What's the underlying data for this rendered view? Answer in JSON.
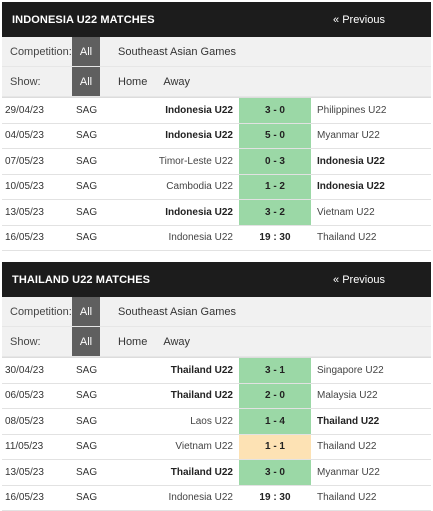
{
  "sections": [
    {
      "title": "INDONESIA U22 MATCHES",
      "prev_label": "« Previous",
      "competition_label": "Competition:",
      "competition_options": [
        "All",
        "Southeast Asian Games"
      ],
      "show_label": "Show:",
      "show_options": [
        "All",
        "Home",
        "Away"
      ],
      "matches": [
        {
          "date": "29/04/23",
          "comp": "SAG",
          "home": "Indonesia U22",
          "score": "3 - 0",
          "away": "Philippines U22",
          "home_bold": true,
          "away_bold": false,
          "result": "win"
        },
        {
          "date": "04/05/23",
          "comp": "SAG",
          "home": "Indonesia U22",
          "score": "5 - 0",
          "away": "Myanmar U22",
          "home_bold": true,
          "away_bold": false,
          "result": "win"
        },
        {
          "date": "07/05/23",
          "comp": "SAG",
          "home": "Timor-Leste U22",
          "score": "0 - 3",
          "away": "Indonesia U22",
          "home_bold": false,
          "away_bold": true,
          "result": "win"
        },
        {
          "date": "10/05/23",
          "comp": "SAG",
          "home": "Cambodia U22",
          "score": "1 - 2",
          "away": "Indonesia U22",
          "home_bold": false,
          "away_bold": true,
          "result": "win"
        },
        {
          "date": "13/05/23",
          "comp": "SAG",
          "home": "Indonesia U22",
          "score": "3 - 2",
          "away": "Vietnam U22",
          "home_bold": true,
          "away_bold": false,
          "result": "win"
        },
        {
          "date": "16/05/23",
          "comp": "SAG",
          "home": "Indonesia U22",
          "score": "19 : 30",
          "away": "Thailand U22",
          "home_bold": false,
          "away_bold": false,
          "result": "upcoming"
        }
      ]
    },
    {
      "title": "THAILAND U22 MATCHES",
      "prev_label": "« Previous",
      "competition_label": "Competition:",
      "competition_options": [
        "All",
        "Southeast Asian Games"
      ],
      "show_label": "Show:",
      "show_options": [
        "All",
        "Home",
        "Away"
      ],
      "matches": [
        {
          "date": "30/04/23",
          "comp": "SAG",
          "home": "Thailand U22",
          "score": "3 - 1",
          "away": "Singapore U22",
          "home_bold": true,
          "away_bold": false,
          "result": "win"
        },
        {
          "date": "06/05/23",
          "comp": "SAG",
          "home": "Thailand U22",
          "score": "2 - 0",
          "away": "Malaysia U22",
          "home_bold": true,
          "away_bold": false,
          "result": "win"
        },
        {
          "date": "08/05/23",
          "comp": "SAG",
          "home": "Laos U22",
          "score": "1 - 4",
          "away": "Thailand U22",
          "home_bold": false,
          "away_bold": true,
          "result": "win"
        },
        {
          "date": "11/05/23",
          "comp": "SAG",
          "home": "Vietnam U22",
          "score": "1 - 1",
          "away": "Thailand U22",
          "home_bold": false,
          "away_bold": false,
          "result": "draw"
        },
        {
          "date": "13/05/23",
          "comp": "SAG",
          "home": "Thailand U22",
          "score": "3 - 0",
          "away": "Myanmar U22",
          "home_bold": true,
          "away_bold": false,
          "result": "win"
        },
        {
          "date": "16/05/23",
          "comp": "SAG",
          "home": "Indonesia U22",
          "score": "19 : 30",
          "away": "Thailand U22",
          "home_bold": false,
          "away_bold": false,
          "result": "upcoming"
        }
      ]
    }
  ],
  "colors": {
    "header_bg": "#1c1c1c",
    "win": "#9bd8a6",
    "draw": "#fde2b4",
    "active_filter": "#5f5f5f"
  }
}
